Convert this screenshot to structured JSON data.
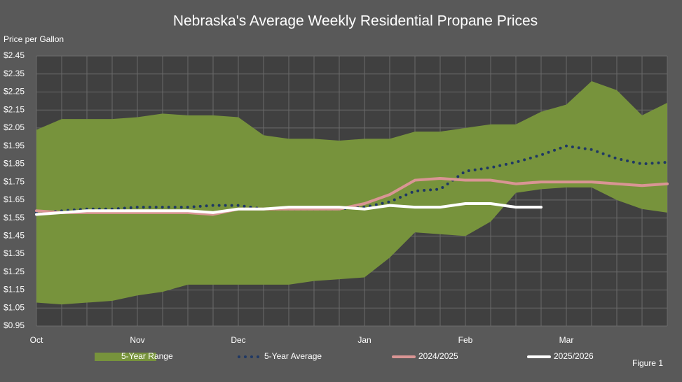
{
  "chart_data": {
    "type": "line",
    "title": "Nebraska's Average Weekly Residential Propane Prices",
    "y_label": "Price per Gallon",
    "note": "Figure 1",
    "categories": [
      "Oct",
      null,
      null,
      null,
      "Nov",
      null,
      null,
      null,
      "Dec",
      null,
      null,
      null,
      null,
      "Jan",
      null,
      null,
      null,
      "Feb",
      null,
      null,
      null,
      "Mar",
      null,
      null,
      null,
      null
    ],
    "ylim": [
      0.95,
      2.45
    ],
    "yticks": [
      {
        "value": 0.95,
        "label": "$0.95"
      },
      {
        "value": 1.05,
        "label": "$1.05"
      },
      {
        "value": 1.15,
        "label": "$1.15"
      },
      {
        "value": 1.25,
        "label": "$1.25"
      },
      {
        "value": 1.35,
        "label": "$1.35"
      },
      {
        "value": 1.45,
        "label": "$1.45"
      },
      {
        "value": 1.55,
        "label": "$1.55"
      },
      {
        "value": 1.65,
        "label": "$1.65"
      },
      {
        "value": 1.75,
        "label": "$1.75"
      },
      {
        "value": 1.85,
        "label": "$1.85"
      },
      {
        "value": 1.95,
        "label": "$1.95"
      },
      {
        "value": 2.05,
        "label": "$2.05"
      },
      {
        "value": 2.15,
        "label": "$2.15"
      },
      {
        "value": 2.25,
        "label": "$2.25"
      },
      {
        "value": 2.35,
        "label": "$2.35"
      },
      {
        "value": 2.45,
        "label": "$2.45"
      }
    ],
    "grid": true,
    "series": [
      {
        "name": "5-Year Range",
        "type": "range",
        "color": "#77933c",
        "upper": [
          2.04,
          2.1,
          2.1,
          2.1,
          2.11,
          2.13,
          2.12,
          2.12,
          2.11,
          2.01,
          1.99,
          1.99,
          1.98,
          1.99,
          1.99,
          2.03,
          2.03,
          2.05,
          2.07,
          2.07,
          2.14,
          2.18,
          2.31,
          2.26,
          2.12,
          2.19
        ],
        "lower": [
          1.08,
          1.07,
          1.08,
          1.09,
          1.12,
          1.14,
          1.18,
          1.18,
          1.18,
          1.18,
          1.18,
          1.2,
          1.21,
          1.22,
          1.33,
          1.47,
          1.46,
          1.45,
          1.53,
          1.69,
          1.71,
          1.72,
          1.72,
          1.65,
          1.6,
          1.58
        ]
      },
      {
        "name": "5-Year Average",
        "type": "dotted",
        "color": "#1f3864",
        "values": [
          1.58,
          1.59,
          1.6,
          1.6,
          1.61,
          1.61,
          1.61,
          1.62,
          1.62,
          1.6,
          1.6,
          1.6,
          1.6,
          1.61,
          1.64,
          1.7,
          1.71,
          1.81,
          1.83,
          1.86,
          1.9,
          1.95,
          1.93,
          1.88,
          1.85,
          1.86
        ]
      },
      {
        "name": "2024/2025",
        "type": "line",
        "color": "#d99594",
        "values": [
          1.59,
          1.58,
          1.58,
          1.58,
          1.58,
          1.58,
          1.58,
          1.57,
          1.6,
          1.6,
          1.6,
          1.6,
          1.6,
          1.63,
          1.68,
          1.76,
          1.77,
          1.76,
          1.76,
          1.74,
          1.75,
          1.75,
          1.75,
          1.74,
          1.73,
          1.74
        ]
      },
      {
        "name": "2025/2026",
        "type": "line",
        "color": "#ffffff",
        "values": [
          1.57,
          1.58,
          1.59,
          1.59,
          1.59,
          1.59,
          1.59,
          1.58,
          1.6,
          1.6,
          1.61,
          1.61,
          1.61,
          1.6,
          1.62,
          1.61,
          1.61,
          1.63,
          1.63,
          1.61,
          1.61,
          null,
          null,
          null,
          null,
          null
        ]
      }
    ]
  }
}
